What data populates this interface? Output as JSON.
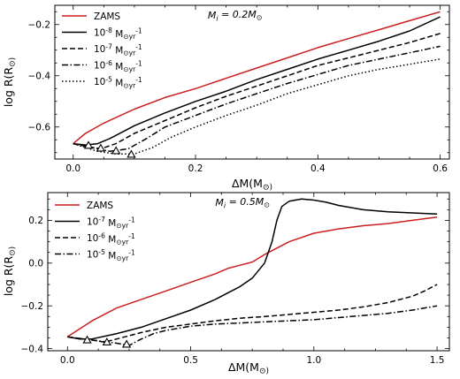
{
  "chart_data": [
    {
      "type": "line",
      "annotation": "M_i = 0.2M_⊙",
      "xlabel": "ΔM(M_⊙)",
      "ylabel": "log R(R_⊙)",
      "xlim": [
        -0.03,
        0.615
      ],
      "ylim": [
        -0.725,
        -0.125
      ],
      "xticks": [
        0.0,
        0.2,
        0.4,
        0.6
      ],
      "xtick_labels": [
        "0.0",
        "0.2",
        "0.4",
        "0.6"
      ],
      "yticks": [
        -0.6,
        -0.4,
        -0.2
      ],
      "ytick_labels": [
        "−0.6",
        "−0.4",
        "−0.2"
      ],
      "legend_position": "top-left",
      "series": [
        {
          "name": "ZAMS",
          "style": "solid",
          "color": "#cc1f1f",
          "x": [
            0.0,
            0.02,
            0.05,
            0.1,
            0.15,
            0.2,
            0.25,
            0.3,
            0.35,
            0.4,
            0.45,
            0.5,
            0.55,
            0.6
          ],
          "y": [
            -0.665,
            -0.625,
            -0.585,
            -0.53,
            -0.485,
            -0.45,
            -0.41,
            -0.37,
            -0.33,
            -0.29,
            -0.255,
            -0.22,
            -0.185,
            -0.15
          ]
        },
        {
          "name": "10^-8 M_⊙yr^-1",
          "style": "solid",
          "color": "#000000",
          "x": [
            0.0,
            0.02,
            0.04,
            0.06,
            0.08,
            0.1,
            0.15,
            0.2,
            0.25,
            0.3,
            0.35,
            0.4,
            0.45,
            0.5,
            0.55,
            0.6
          ],
          "y": [
            -0.665,
            -0.67,
            -0.665,
            -0.645,
            -0.62,
            -0.595,
            -0.545,
            -0.5,
            -0.46,
            -0.415,
            -0.375,
            -0.335,
            -0.3,
            -0.265,
            -0.225,
            -0.17
          ]
        },
        {
          "name": "10^-7 M_⊙yr^-1",
          "style": "dashed",
          "color": "#000000",
          "x": [
            0.0,
            0.02,
            0.045,
            0.07,
            0.1,
            0.15,
            0.2,
            0.25,
            0.3,
            0.35,
            0.4,
            0.45,
            0.5,
            0.55,
            0.6
          ],
          "y": [
            -0.665,
            -0.675,
            -0.685,
            -0.665,
            -0.625,
            -0.575,
            -0.525,
            -0.48,
            -0.44,
            -0.4,
            -0.36,
            -0.33,
            -0.3,
            -0.27,
            -0.235
          ]
        },
        {
          "name": "10^-6 M_⊙yr^-1",
          "style": "dashdot",
          "color": "#000000",
          "x": [
            0.0,
            0.03,
            0.06,
            0.09,
            0.12,
            0.15,
            0.2,
            0.25,
            0.3,
            0.35,
            0.4,
            0.45,
            0.5,
            0.55,
            0.6
          ],
          "y": [
            -0.665,
            -0.68,
            -0.695,
            -0.685,
            -0.645,
            -0.6,
            -0.555,
            -0.51,
            -0.47,
            -0.43,
            -0.395,
            -0.36,
            -0.335,
            -0.31,
            -0.285
          ]
        },
        {
          "name": "10^-5 M_⊙yr^-1",
          "style": "dotted",
          "color": "#000000",
          "x": [
            0.0,
            0.04,
            0.07,
            0.1,
            0.13,
            0.16,
            0.2,
            0.25,
            0.3,
            0.35,
            0.4,
            0.45,
            0.5,
            0.55,
            0.6
          ],
          "y": [
            -0.665,
            -0.695,
            -0.705,
            -0.705,
            -0.68,
            -0.64,
            -0.6,
            -0.555,
            -0.515,
            -0.47,
            -0.435,
            -0.4,
            -0.375,
            -0.355,
            -0.335
          ]
        }
      ],
      "markers": {
        "symbol": "open-triangle",
        "points": [
          [
            0.025,
            -0.672
          ],
          [
            0.045,
            -0.683
          ],
          [
            0.07,
            -0.693
          ],
          [
            0.095,
            -0.707
          ]
        ]
      }
    },
    {
      "type": "line",
      "annotation": "M_i = 0.5M_⊙",
      "xlabel": "ΔM(M_⊙)",
      "ylabel": "log R(R_⊙)",
      "xlim": [
        -0.08,
        1.55
      ],
      "ylim": [
        -0.41,
        0.33
      ],
      "xticks": [
        0.0,
        0.5,
        1.0,
        1.5
      ],
      "xtick_labels": [
        "0.0",
        "0.5",
        "1.0",
        "1.5"
      ],
      "yticks": [
        -0.4,
        -0.2,
        0.0,
        0.2
      ],
      "ytick_labels": [
        "−0.4",
        "−0.2",
        "0.0",
        "0.2"
      ],
      "legend_position": "top-left",
      "series": [
        {
          "name": "ZAMS",
          "style": "solid",
          "color": "#cc1f1f",
          "x": [
            0.0,
            0.1,
            0.2,
            0.3,
            0.4,
            0.5,
            0.6,
            0.65,
            0.7,
            0.75,
            0.8,
            0.9,
            1.0,
            1.1,
            1.2,
            1.3,
            1.4,
            1.5
          ],
          "y": [
            -0.345,
            -0.27,
            -0.21,
            -0.17,
            -0.13,
            -0.09,
            -0.05,
            -0.025,
            -0.01,
            0.005,
            0.04,
            0.1,
            0.14,
            0.16,
            0.175,
            0.185,
            0.2,
            0.215
          ]
        },
        {
          "name": "10^-7 M_⊙yr^-1",
          "style": "solid",
          "color": "#000000",
          "x": [
            0.0,
            0.05,
            0.1,
            0.2,
            0.3,
            0.4,
            0.5,
            0.6,
            0.7,
            0.75,
            0.8,
            0.83,
            0.85,
            0.87,
            0.9,
            0.95,
            1.0,
            1.05,
            1.1,
            1.2,
            1.3,
            1.4,
            1.5
          ],
          "y": [
            -0.345,
            -0.355,
            -0.355,
            -0.33,
            -0.3,
            -0.26,
            -0.22,
            -0.17,
            -0.11,
            -0.07,
            0.0,
            0.1,
            0.2,
            0.265,
            0.29,
            0.3,
            0.295,
            0.285,
            0.27,
            0.25,
            0.24,
            0.235,
            0.23
          ]
        },
        {
          "name": "10^-6 M_⊙yr^-1",
          "style": "dashed",
          "color": "#000000",
          "x": [
            0.0,
            0.1,
            0.15,
            0.2,
            0.3,
            0.4,
            0.5,
            0.6,
            0.7,
            0.8,
            0.9,
            1.0,
            1.1,
            1.2,
            1.3,
            1.4,
            1.45,
            1.5
          ],
          "y": [
            -0.345,
            -0.36,
            -0.37,
            -0.355,
            -0.325,
            -0.3,
            -0.285,
            -0.27,
            -0.258,
            -0.25,
            -0.24,
            -0.23,
            -0.22,
            -0.205,
            -0.185,
            -0.155,
            -0.13,
            -0.1
          ]
        },
        {
          "name": "10^-5 M_⊙yr^-1",
          "style": "dashdot",
          "color": "#000000",
          "x": [
            0.0,
            0.1,
            0.2,
            0.25,
            0.3,
            0.35,
            0.4,
            0.5,
            0.6,
            0.7,
            0.8,
            0.9,
            1.0,
            1.1,
            1.2,
            1.3,
            1.4,
            1.5
          ],
          "y": [
            -0.345,
            -0.36,
            -0.375,
            -0.385,
            -0.355,
            -0.33,
            -0.315,
            -0.295,
            -0.285,
            -0.28,
            -0.275,
            -0.27,
            -0.265,
            -0.255,
            -0.245,
            -0.235,
            -0.22,
            -0.2
          ]
        }
      ],
      "markers": {
        "symbol": "open-triangle",
        "points": [
          [
            0.08,
            -0.36
          ],
          [
            0.16,
            -0.37
          ],
          [
            0.24,
            -0.38
          ]
        ]
      }
    }
  ]
}
